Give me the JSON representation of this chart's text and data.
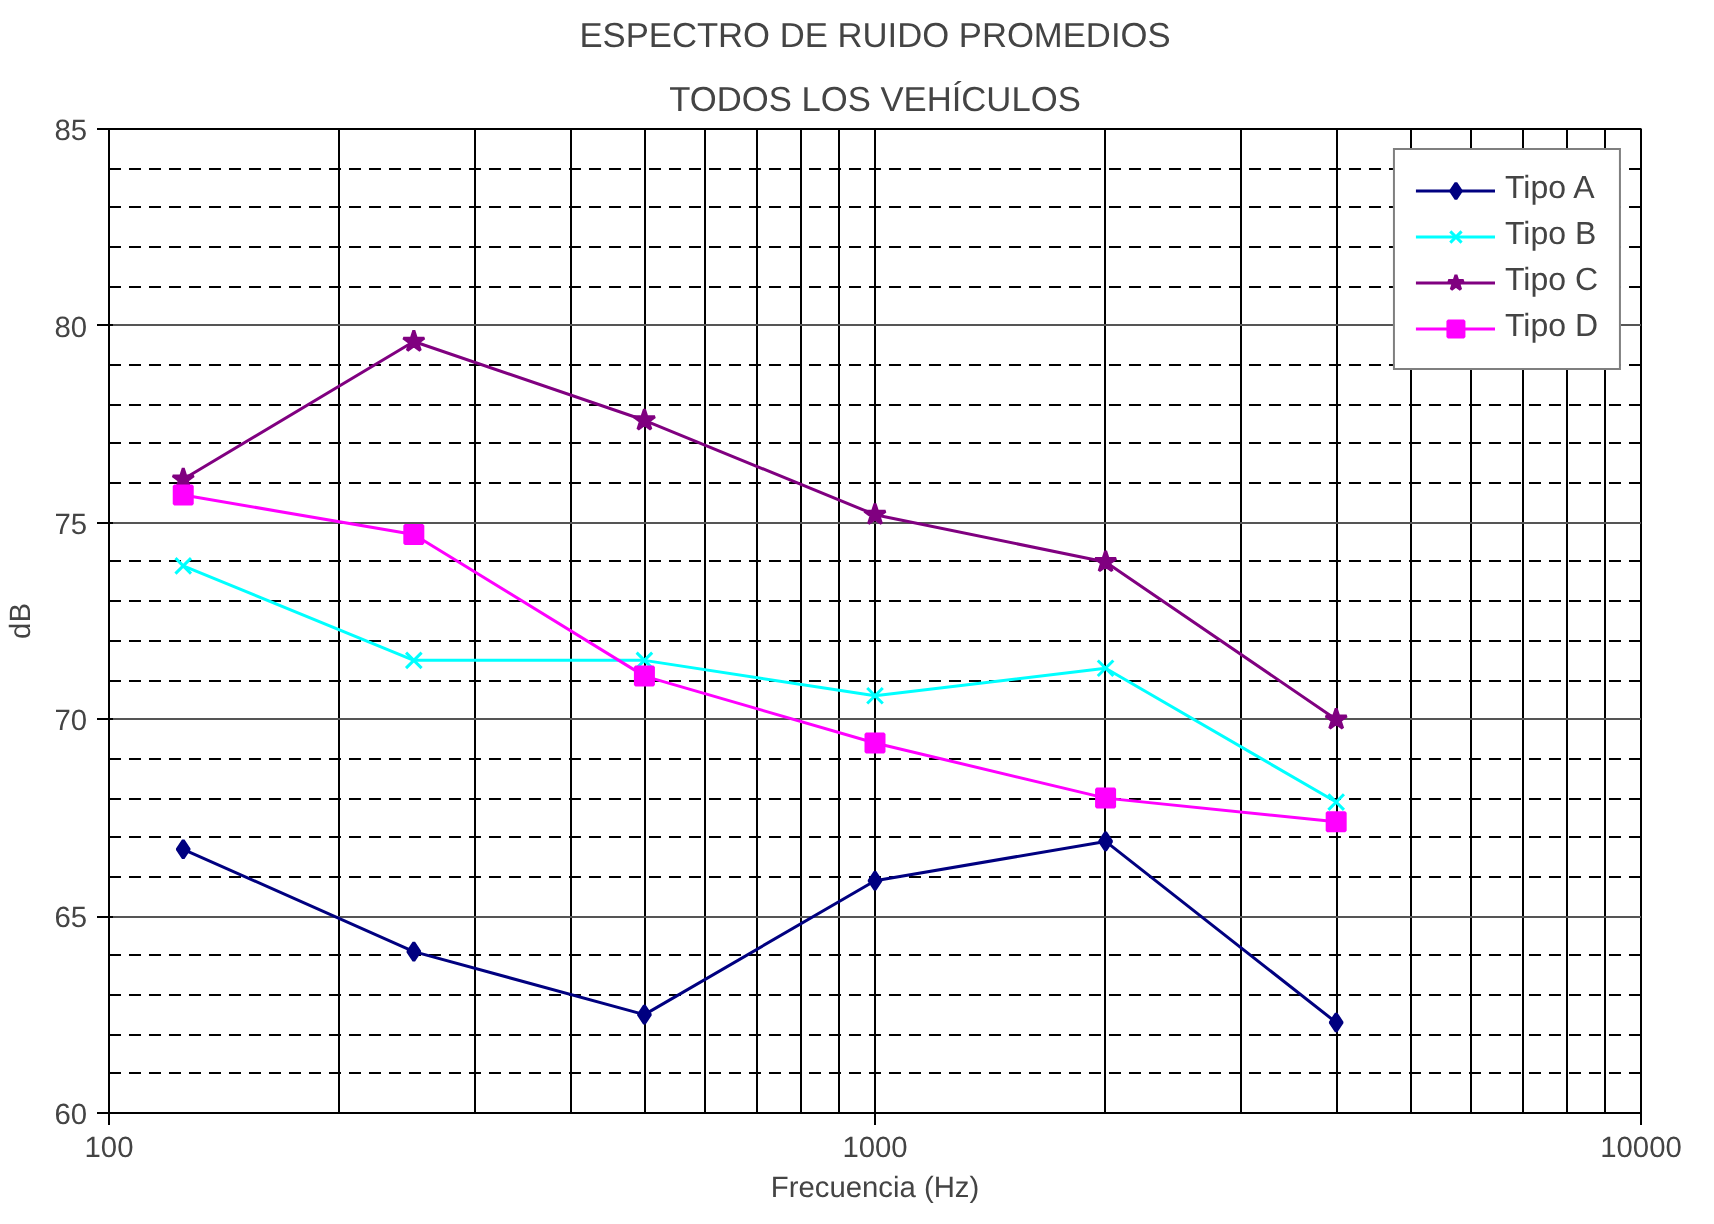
{
  "chart_data": {
    "type": "line",
    "title": "ESPECTRO DE RUIDO PROMEDIOS",
    "subtitle": "TODOS LOS VEHÍCULOS",
    "xlabel": "Frecuencia (Hz)",
    "ylabel": "dB",
    "x": [
      125,
      250,
      500,
      1000,
      2000,
      4000
    ],
    "series": [
      {
        "name": "Tipo A",
        "color": "#000080",
        "marker": "diamond",
        "values": [
          66.7,
          64.1,
          62.5,
          65.9,
          66.9,
          62.3
        ]
      },
      {
        "name": "Tipo B",
        "color": "#00ffff",
        "marker": "cross",
        "values": [
          73.9,
          71.5,
          71.5,
          70.6,
          71.3,
          67.9
        ]
      },
      {
        "name": "Tipo C",
        "color": "#800080",
        "marker": "star",
        "values": [
          76.1,
          79.6,
          77.6,
          75.2,
          74.0,
          70.0
        ]
      },
      {
        "name": "Tipo D",
        "color": "#ff00ff",
        "marker": "square",
        "values": [
          75.7,
          74.7,
          71.1,
          69.4,
          68.0,
          67.4
        ]
      }
    ],
    "log": "x",
    "xlim": [
      100,
      10000
    ],
    "xticks": [
      100,
      1000,
      10000
    ],
    "ylim": [
      60,
      85
    ],
    "yticks": [
      60,
      65,
      70,
      75,
      80,
      85
    ],
    "grid": true,
    "legend": "top right",
    "line_style": "solid"
  }
}
